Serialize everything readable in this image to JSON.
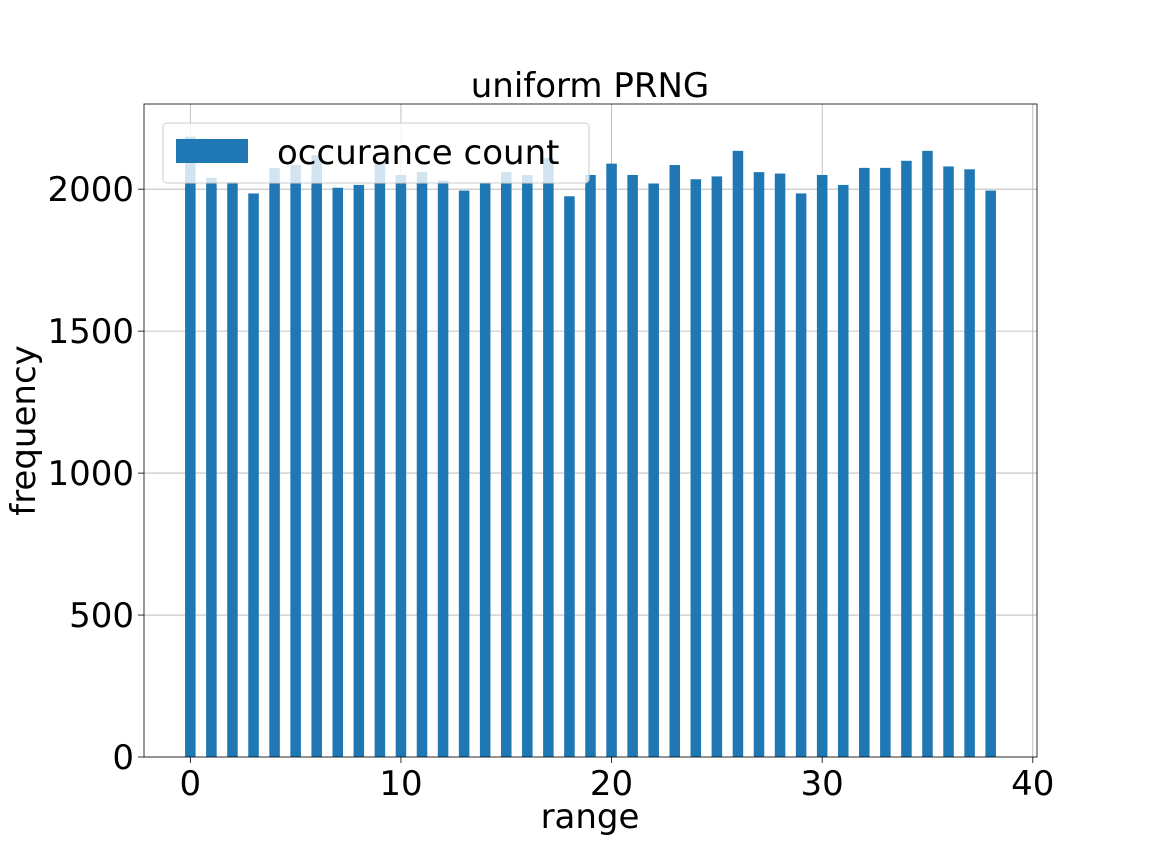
{
  "chart_data": {
    "type": "bar",
    "title": "uniform PRNG",
    "xlabel": "range",
    "ylabel": "frequency",
    "x": [
      0,
      1,
      2,
      3,
      4,
      5,
      6,
      7,
      8,
      9,
      10,
      11,
      12,
      13,
      14,
      15,
      16,
      17,
      18,
      19,
      20,
      21,
      22,
      23,
      24,
      25,
      26,
      27,
      28,
      29,
      30,
      31,
      32,
      33,
      34,
      35,
      36,
      37,
      38
    ],
    "values": [
      2185,
      2040,
      2025,
      1985,
      2075,
      2085,
      2120,
      2005,
      2015,
      2095,
      2050,
      2060,
      2030,
      1995,
      2020,
      2060,
      2050,
      2110,
      1975,
      2050,
      2090,
      2050,
      2020,
      2085,
      2035,
      2045,
      2135,
      2060,
      2055,
      1985,
      2050,
      2015,
      2075,
      2075,
      2100,
      2135,
      2080,
      2070,
      1995
    ],
    "xlim": [
      -2.2,
      40.2
    ],
    "ylim": [
      0,
      2300
    ],
    "xticks": [
      "0",
      "10",
      "20",
      "30",
      "40"
    ],
    "yticks": [
      "0",
      "500",
      "1000",
      "1500",
      "2000"
    ],
    "grid": true,
    "legend": {
      "position": "top-left",
      "entries": [
        "occurance count"
      ]
    },
    "bar_color": "#1f77b4"
  }
}
